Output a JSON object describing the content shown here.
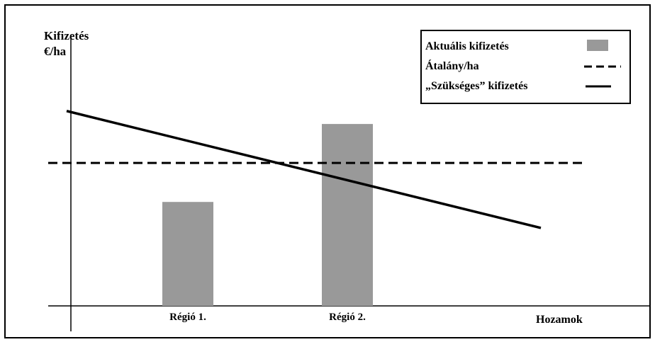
{
  "chart_data": {
    "type": "bar",
    "ylabel_line1": "Kifizetés",
    "ylabel_line2": "€/ha",
    "xlabel": "Hozamok",
    "categories": [
      "Régió 1.",
      "Régió 2."
    ],
    "ylim": [
      0,
      100
    ],
    "xlim": [
      0,
      100
    ],
    "series": [
      {
        "name": "Aktuális kifizetés",
        "kind": "bar",
        "color": "#999999",
        "values": [
          40,
          70
        ]
      },
      {
        "name": "Átalány/ha",
        "kind": "dashed-line",
        "color": "#000000",
        "value": 55
      },
      {
        "name": "„Szükséges” kifizetés",
        "kind": "solid-line",
        "x": [
          0,
          100
        ],
        "y": [
          75,
          30
        ]
      }
    ],
    "category_x": [
      22,
      52
    ],
    "legend_position": "top-right",
    "grid": false
  }
}
